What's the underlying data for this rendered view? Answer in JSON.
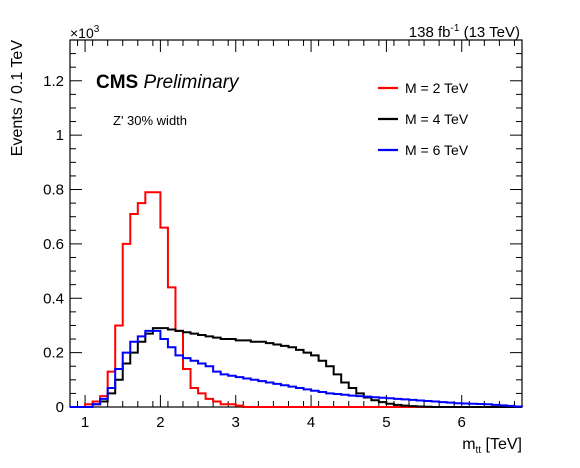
{
  "chart_data": {
    "type": "line",
    "step": true,
    "xlabel_base": "m",
    "xlabel_sub": "tt",
    "xlabel_unit": "[TeV]",
    "ylabel": "Events / 0.1 TeV",
    "y_multiplier": "×10",
    "y_multiplier_exp": "3",
    "lumi": {
      "base": "138 fb",
      "exp": "-1",
      "energy": "(13 TeV)"
    },
    "experiment": "CMS",
    "status": "Preliminary",
    "annotation": "Z' 30% width",
    "xlim": [
      0.8,
      6.8
    ],
    "ylim": [
      0,
      1.35
    ],
    "x_ticks": [
      1,
      2,
      3,
      4,
      5,
      6
    ],
    "y_ticks": [
      0,
      0.2,
      0.4,
      0.6,
      0.8,
      1,
      1.2
    ],
    "y_tick_labels": [
      "0",
      "0.2",
      "0.4",
      "0.6",
      "0.8",
      "1",
      "1.2"
    ],
    "legend_position": "top-right",
    "bin_edges": [
      0.8,
      0.9,
      1.0,
      1.1,
      1.2,
      1.3,
      1.4,
      1.5,
      1.6,
      1.7,
      1.8,
      1.9,
      2.0,
      2.1,
      2.2,
      2.3,
      2.4,
      2.5,
      2.6,
      2.7,
      2.8,
      2.9,
      3.0,
      3.1,
      3.2,
      3.3,
      3.4,
      3.5,
      3.6,
      3.7,
      3.8,
      3.9,
      4.0,
      4.1,
      4.2,
      4.3,
      4.4,
      4.5,
      4.6,
      4.7,
      4.8,
      4.9,
      5.0,
      5.1,
      5.2,
      5.3,
      5.4,
      5.5,
      5.6,
      5.7,
      5.8,
      5.9,
      6.0,
      6.1,
      6.2,
      6.3,
      6.4,
      6.5,
      6.6,
      6.7,
      6.8
    ],
    "series": [
      {
        "name": "M = 2 TeV",
        "color": "#ff0000",
        "values": [
          0,
          0,
          0.01,
          0.02,
          0.04,
          0.13,
          0.3,
          0.6,
          0.71,
          0.75,
          0.79,
          0.79,
          0.66,
          0.44,
          0.28,
          0.14,
          0.07,
          0.05,
          0.03,
          0.02,
          0.01,
          0.01,
          0.005,
          0,
          0,
          0,
          0,
          0,
          0,
          0,
          0,
          0,
          0,
          0,
          0,
          0,
          0,
          0,
          0,
          0,
          0,
          0,
          0,
          0,
          0,
          0,
          0,
          0,
          0,
          0,
          0,
          0,
          0,
          0,
          0,
          0,
          0,
          0,
          0,
          0
        ]
      },
      {
        "name": "M = 4 TeV",
        "color": "#000000",
        "values": [
          0,
          0,
          0,
          0.01,
          0.02,
          0.05,
          0.1,
          0.16,
          0.2,
          0.24,
          0.27,
          0.29,
          0.29,
          0.285,
          0.28,
          0.275,
          0.27,
          0.265,
          0.26,
          0.255,
          0.25,
          0.25,
          0.245,
          0.245,
          0.24,
          0.24,
          0.235,
          0.23,
          0.225,
          0.22,
          0.21,
          0.2,
          0.19,
          0.17,
          0.15,
          0.12,
          0.09,
          0.07,
          0.05,
          0.035,
          0.025,
          0.018,
          0.012,
          0.008,
          0.005,
          0.003,
          0.002,
          0.001,
          0,
          0,
          0,
          0,
          0,
          0,
          0,
          0,
          0,
          0,
          0,
          0
        ]
      },
      {
        "name": "M = 6 TeV",
        "color": "#0000ff",
        "values": [
          0,
          0,
          0,
          0.01,
          0.03,
          0.07,
          0.14,
          0.2,
          0.24,
          0.26,
          0.28,
          0.28,
          0.25,
          0.22,
          0.19,
          0.18,
          0.17,
          0.16,
          0.15,
          0.13,
          0.12,
          0.115,
          0.11,
          0.105,
          0.1,
          0.095,
          0.09,
          0.085,
          0.08,
          0.075,
          0.07,
          0.065,
          0.06,
          0.055,
          0.05,
          0.048,
          0.045,
          0.042,
          0.04,
          0.038,
          0.036,
          0.034,
          0.032,
          0.03,
          0.028,
          0.026,
          0.024,
          0.022,
          0.02,
          0.018,
          0.016,
          0.014,
          0.013,
          0.012,
          0.011,
          0.01,
          0.008,
          0.006,
          0.004,
          0.002
        ]
      }
    ]
  }
}
